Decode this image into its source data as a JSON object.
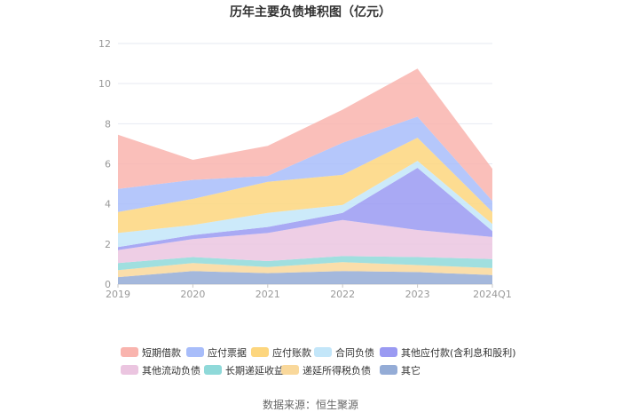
{
  "chart_data": {
    "type": "area",
    "stacked": true,
    "title": "历年主要负债堆积图（亿元）",
    "source": "数据来源：恒生聚源",
    "categories": [
      "2019",
      "2020",
      "2021",
      "2022",
      "2023",
      "2024Q1"
    ],
    "ylim": [
      0,
      12
    ],
    "yticks": [
      "0",
      "2",
      "4",
      "6",
      "8",
      "10",
      "12"
    ],
    "grid": true,
    "legend_position": "bottom",
    "series": [
      {
        "name": "其它",
        "color": "#94acd6",
        "values": [
          0.35,
          0.65,
          0.55,
          0.65,
          0.6,
          0.45
        ]
      },
      {
        "name": "递延所得税负债",
        "color": "#f9d89b",
        "values": [
          0.35,
          0.4,
          0.3,
          0.45,
          0.35,
          0.35
        ]
      },
      {
        "name": "长期递延收益",
        "color": "#8fd9d9",
        "values": [
          0.35,
          0.3,
          0.3,
          0.3,
          0.4,
          0.45
        ]
      },
      {
        "name": "其他流动负债",
        "color": "#ebc5e0",
        "values": [
          0.65,
          0.9,
          1.4,
          1.8,
          1.35,
          1.1
        ]
      },
      {
        "name": "其他应付款(含利息和股利)",
        "color": "#9a9af2",
        "values": [
          0.15,
          0.2,
          0.3,
          0.35,
          3.1,
          0.3
        ]
      },
      {
        "name": "合同负债",
        "color": "#c3e6f9",
        "values": [
          0.7,
          0.5,
          0.7,
          0.4,
          0.35,
          0.35
        ]
      },
      {
        "name": "应付账款",
        "color": "#fdd67e",
        "values": [
          1.05,
          1.3,
          1.55,
          1.5,
          1.15,
          0.6
        ]
      },
      {
        "name": "应付票据",
        "color": "#a8bdfa",
        "values": [
          1.15,
          0.95,
          0.3,
          1.6,
          1.05,
          0.55
        ]
      },
      {
        "name": "短期借款",
        "color": "#f9b4ae",
        "values": [
          2.7,
          1.0,
          1.5,
          1.65,
          2.4,
          1.6
        ]
      }
    ],
    "legend_order": [
      "短期借款",
      "应付票据",
      "应付账款",
      "合同负债",
      "其他应付款(含利息和股利)",
      "其他流动负债",
      "长期递延收益",
      "递延所得税负债",
      "其它"
    ]
  }
}
